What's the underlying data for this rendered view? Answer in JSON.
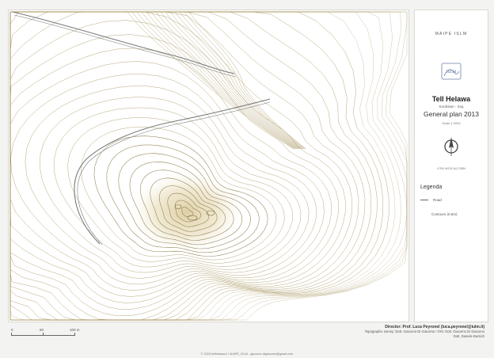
{
  "brand": "MAIPE ISLM",
  "logo_label": "ISLM",
  "site": {
    "title": "Tell Helawa",
    "subtitle": "Kurdistan - Iraq",
    "plan_title": "General plan 2013",
    "scale": "Scale 1:2000",
    "crs": "UTM WGS 84 Z38N"
  },
  "legend": {
    "title": "Legenda",
    "items": [
      {
        "label": "Road"
      },
      {
        "label": "Contours (0.5m)"
      }
    ]
  },
  "scalebar": {
    "ticks": [
      "0",
      "50",
      "100 m"
    ]
  },
  "credits": {
    "director": "Director: Prof. Luca Peyronel (luca.peyronel@iulm.it)",
    "survey_line1": "Topographic survey: Dott. Giacomo Di Giacomo / GIS: Dott. Giacomo Di Giacomo",
    "survey_line2": "Dott. Daniele Bursich",
    "footer": "© 2015 tellhelawa.it / MAIPE_ISLM - giacomo.digiacomo@gmail.com"
  },
  "colors": {
    "contour": "#a08c52",
    "contour_dense": "#7d6b35",
    "road": "#7a7a7a",
    "hill_shade": "#e8dcb8"
  },
  "icons": [
    "north-arrow-icon",
    "institution-logo-icon"
  ]
}
